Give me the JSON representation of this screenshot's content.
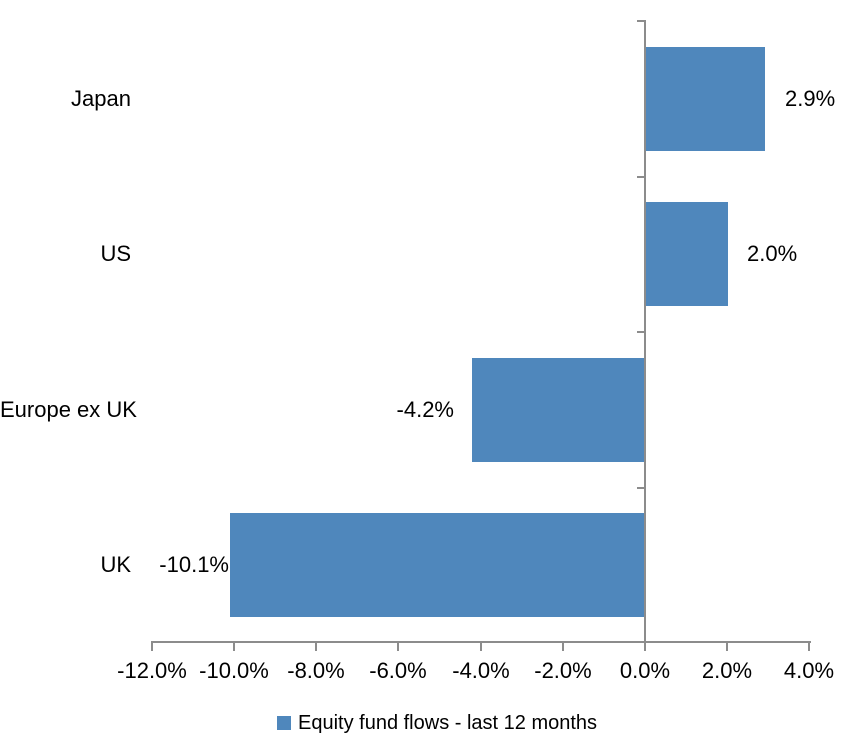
{
  "chart_data": {
    "type": "bar",
    "orientation": "horizontal",
    "title": "",
    "categories": [
      "Japan",
      "US",
      "Europe ex UK",
      "UK"
    ],
    "series": [
      {
        "name": "Equity fund flows - last 12 months",
        "values": [
          2.9,
          2.0,
          -4.2,
          -10.1
        ]
      }
    ],
    "data_labels": [
      "2.9%",
      "2.0%",
      "-4.2%",
      "-10.1%"
    ],
    "x_tick_labels": [
      "-12.0%",
      "-10.0%",
      "-8.0%",
      "-6.0%",
      "-4.0%",
      "-2.0%",
      "0.0%",
      "2.0%",
      "4.0%"
    ],
    "x_tick_values": [
      -12,
      -10,
      -8,
      -6,
      -4,
      -2,
      0,
      2,
      4
    ],
    "xlim": [
      -12,
      4
    ],
    "grid": false,
    "legend": {
      "label": "Equity fund flows - last 12 months",
      "position": "bottom"
    },
    "colors": {
      "bar": "#4F87BC",
      "axis": "#8C8C8C",
      "text": "#000000",
      "background": "#FFFFFF"
    }
  }
}
